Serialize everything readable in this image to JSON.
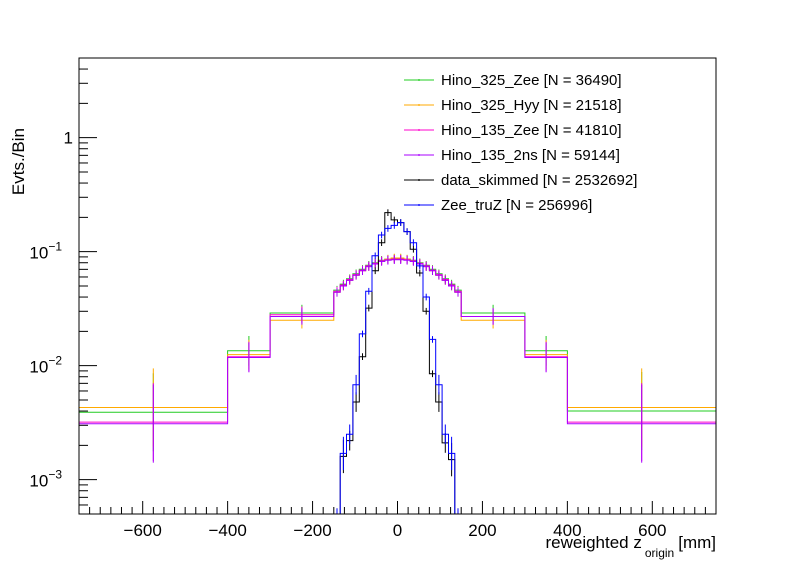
{
  "chart_data": {
    "type": "histogram",
    "xlabel": "reweighted z",
    "xlabel_subscript": "origin",
    "xlabel_unit": "[mm]",
    "ylabel": "Evts./Bin",
    "xlim": [
      -750,
      750
    ],
    "ylim": [
      0.0005,
      5
    ],
    "yscale": "log",
    "x_ticks": [
      {
        "value": -600,
        "label": "−600"
      },
      {
        "value": -400,
        "label": "−400"
      },
      {
        "value": -200,
        "label": "−200"
      },
      {
        "value": 0,
        "label": "0"
      },
      {
        "value": 200,
        "label": "200"
      },
      {
        "value": 400,
        "label": "400"
      },
      {
        "value": 600,
        "label": "600"
      }
    ],
    "y_ticks": [
      {
        "value": 0.001,
        "base": "10",
        "exp": "−3"
      },
      {
        "value": 0.01,
        "base": "10",
        "exp": "−2"
      },
      {
        "value": 0.1,
        "base": "10",
        "exp": "−1"
      },
      {
        "value": 1,
        "base": "1",
        "exp": ""
      }
    ],
    "legend": [
      {
        "label": "Hino_325_Zee [N = 36490]",
        "color": "#22cc22"
      },
      {
        "label": "Hino_325_Hyy [N = 21518]",
        "color": "#ffaa00"
      },
      {
        "label": "Hino_135_Zee [N = 41810]",
        "color": "#ff00cc"
      },
      {
        "label": "Hino_135_2ns [N = 59144]",
        "color": "#aa00ff"
      },
      {
        "label": "data_skimmed [N = 2532692]",
        "color": "#000000"
      },
      {
        "label": "Zee_truZ [N = 256996]",
        "color": "#0000ff"
      }
    ],
    "wide_edges": [
      -750,
      -400,
      -300,
      -150,
      -135,
      -120,
      -105,
      -90,
      -75,
      -60,
      -45,
      -30,
      -15,
      0,
      15,
      30,
      45,
      60,
      75,
      90,
      105,
      120,
      135,
      150,
      300,
      400,
      750
    ],
    "wide_series": [
      {
        "name": "Hino_325_Zee",
        "color": "#22cc22",
        "values": [
          0.0039,
          0.0135,
          0.029,
          0.046,
          0.052,
          0.058,
          0.064,
          0.07,
          0.076,
          0.08,
          0.084,
          0.086,
          0.087,
          0.087,
          0.086,
          0.084,
          0.08,
          0.076,
          0.07,
          0.064,
          0.058,
          0.052,
          0.046,
          0.029,
          0.0135,
          0.004
        ]
      },
      {
        "name": "Hino_325_Hyy",
        "color": "#ffaa00",
        "values": [
          0.0043,
          0.0125,
          0.025,
          0.044,
          0.05,
          0.056,
          0.062,
          0.068,
          0.074,
          0.079,
          0.083,
          0.086,
          0.088,
          0.088,
          0.086,
          0.083,
          0.079,
          0.074,
          0.068,
          0.062,
          0.056,
          0.05,
          0.044,
          0.025,
          0.0125,
          0.0043
        ]
      },
      {
        "name": "Hino_135_Zee",
        "color": "#ff00cc",
        "values": [
          0.0032,
          0.012,
          0.028,
          0.045,
          0.051,
          0.057,
          0.063,
          0.069,
          0.075,
          0.079,
          0.083,
          0.085,
          0.086,
          0.086,
          0.085,
          0.083,
          0.079,
          0.075,
          0.069,
          0.063,
          0.057,
          0.051,
          0.045,
          0.027,
          0.012,
          0.0032
        ]
      },
      {
        "name": "Hino_135_2ns",
        "color": "#aa00ff",
        "values": [
          0.0031,
          0.0118,
          0.027,
          0.044,
          0.05,
          0.056,
          0.062,
          0.068,
          0.074,
          0.078,
          0.082,
          0.084,
          0.085,
          0.085,
          0.084,
          0.082,
          0.078,
          0.074,
          0.068,
          0.062,
          0.056,
          0.05,
          0.044,
          0.027,
          0.0118,
          0.0031
        ]
      }
    ],
    "narrow_edges": [
      -150,
      -135,
      -120,
      -105,
      -90,
      -75,
      -60,
      -45,
      -30,
      -15,
      0,
      15,
      30,
      45,
      60,
      75,
      90,
      105,
      120,
      135,
      150
    ],
    "narrow_series": [
      {
        "name": "data_skimmed",
        "color": "#000000",
        "values": [
          0.0004,
          0.0016,
          0.0022,
          0.0048,
          0.012,
          0.032,
          0.068,
          0.12,
          0.22,
          0.19,
          0.18,
          0.15,
          0.105,
          0.065,
          0.03,
          0.0085,
          0.0048,
          0.0021,
          0.0015,
          0.0004
        ]
      },
      {
        "name": "Zee_truZ",
        "color": "#0000ff",
        "values": [
          0.0004,
          0.0017,
          0.0025,
          0.0068,
          0.019,
          0.045,
          0.092,
          0.14,
          0.16,
          0.17,
          0.18,
          0.15,
          0.12,
          0.075,
          0.04,
          0.017,
          0.0068,
          0.0025,
          0.0017,
          0.0004
        ]
      }
    ]
  }
}
